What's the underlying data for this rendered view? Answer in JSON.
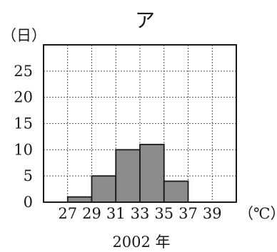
{
  "chart_data": {
    "type": "bar",
    "title": "ア",
    "ylabel": "（日）",
    "xlabel": "2002 年",
    "x_unit": "（℃）",
    "x_ticks": [
      "27",
      "29",
      "31",
      "33",
      "35",
      "37",
      "39"
    ],
    "y_ticks": [
      "0",
      "5",
      "10",
      "15",
      "20",
      "25"
    ],
    "ylim": [
      0,
      30
    ],
    "xlim": [
      25,
      41
    ],
    "grid": true,
    "bins": [
      {
        "from": 27,
        "to": 29,
        "value": 1
      },
      {
        "from": 29,
        "to": 31,
        "value": 5
      },
      {
        "from": 31,
        "to": 33,
        "value": 10
      },
      {
        "from": 33,
        "to": 35,
        "value": 11
      },
      {
        "from": 35,
        "to": 37,
        "value": 4
      },
      {
        "from": 37,
        "to": 39,
        "value": 0
      }
    ],
    "colors": {
      "bar_fill": "#8c8c8c",
      "bar_stroke": "#1a1a1a",
      "grid": "#555555",
      "axis": "#1a1a1a"
    }
  }
}
